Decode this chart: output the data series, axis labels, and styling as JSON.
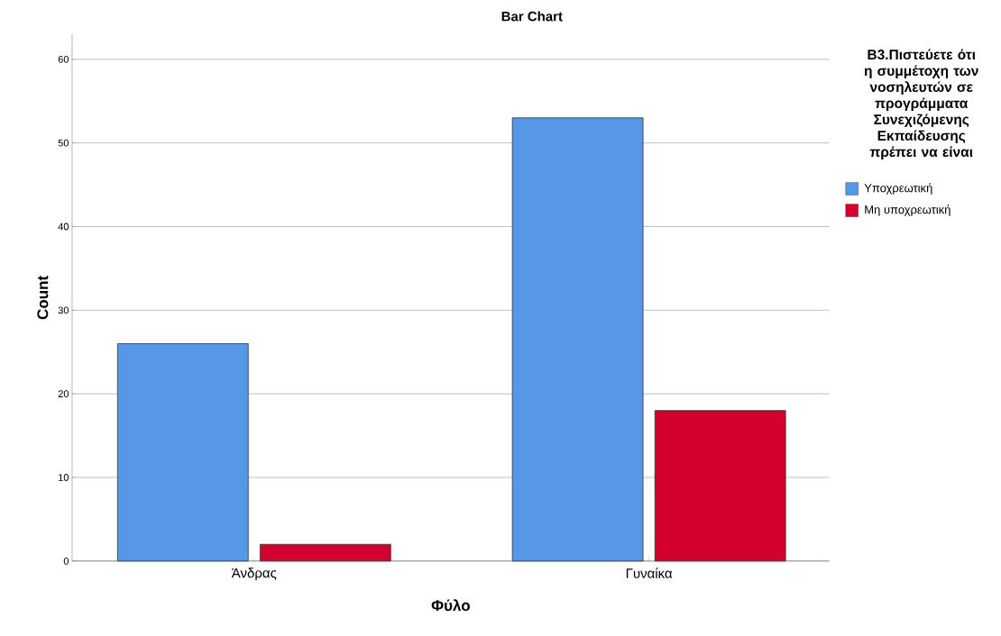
{
  "chart_data": {
    "type": "bar",
    "title": "Bar Chart",
    "xlabel": "Φύλο",
    "ylabel": "Count",
    "legend_title": "B3.Πιστεύετε ότι η συμμέτοχη των νοσηλευτών σε προγράμματα Συνεχιζόμενης Εκπαίδευσης πρέπει να είναι",
    "categories": [
      "Άνδρας",
      "Γυναίκα"
    ],
    "series": [
      {
        "name": "Υποχρεωτική",
        "color": "#5698e5",
        "values": [
          26,
          53
        ]
      },
      {
        "name": "Μη υποχρεωτική",
        "color": "#d3002f",
        "values": [
          2,
          18
        ]
      }
    ],
    "ylim": [
      0,
      63
    ],
    "yticks": [
      0,
      10,
      20,
      30,
      40,
      50,
      60
    ],
    "grid": "y",
    "legend": "right"
  }
}
